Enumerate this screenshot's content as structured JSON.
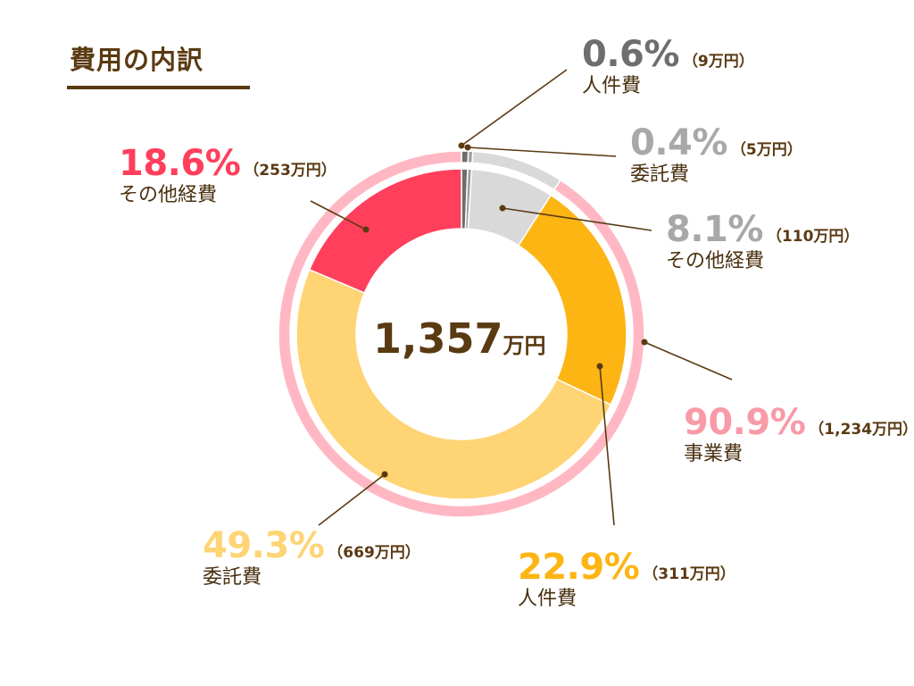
{
  "title": "費用の内訳",
  "chart_data": {
    "type": "pie",
    "subtype": "nested-donut",
    "total_value": "1,357",
    "total_unit": "万円",
    "outer_ring": [
      {
        "percent_label": "90.9%",
        "amount_label": "（1,234万円）",
        "name": "事業費",
        "value": 90.9,
        "color": "#ffb8c3"
      },
      {
        "percent_label": "0.6%",
        "amount_label": "（9万円）",
        "name": "人件費",
        "value": 0.6,
        "color": "#6e6e6e"
      },
      {
        "percent_label": "0.4%",
        "amount_label": "（5万円）",
        "name": "委託費",
        "value": 0.4,
        "color": "#a0a0a0"
      },
      {
        "percent_label": "8.1%",
        "amount_label": "（110万円）",
        "name": "その他経費",
        "value": 8.1,
        "color": "#d9d9d9"
      }
    ],
    "inner_ring": [
      {
        "percent_label": "22.9%",
        "amount_label": "（311万円）",
        "name": "人件費",
        "value": 22.9,
        "color": "#fdb514"
      },
      {
        "percent_label": "49.3%",
        "amount_label": "（669万円）",
        "name": "委託費",
        "value": 49.3,
        "color": "#fed474"
      },
      {
        "percent_label": "18.6%",
        "amount_label": "（253万円）",
        "name": "その他経費",
        "value": 18.6,
        "color": "#ff3f5c"
      }
    ]
  },
  "label_colors": {
    "outer_ring.0": "#f99aa8",
    "outer_ring.1": "#6e6e6e",
    "outer_ring.2": "#a8a8a8",
    "outer_ring.3": "#a8a8a8",
    "inner_ring.0": "#fdb514",
    "inner_ring.1": "#fed474",
    "inner_ring.2": "#ff3f5c"
  },
  "leader_color": "#5a3a12"
}
